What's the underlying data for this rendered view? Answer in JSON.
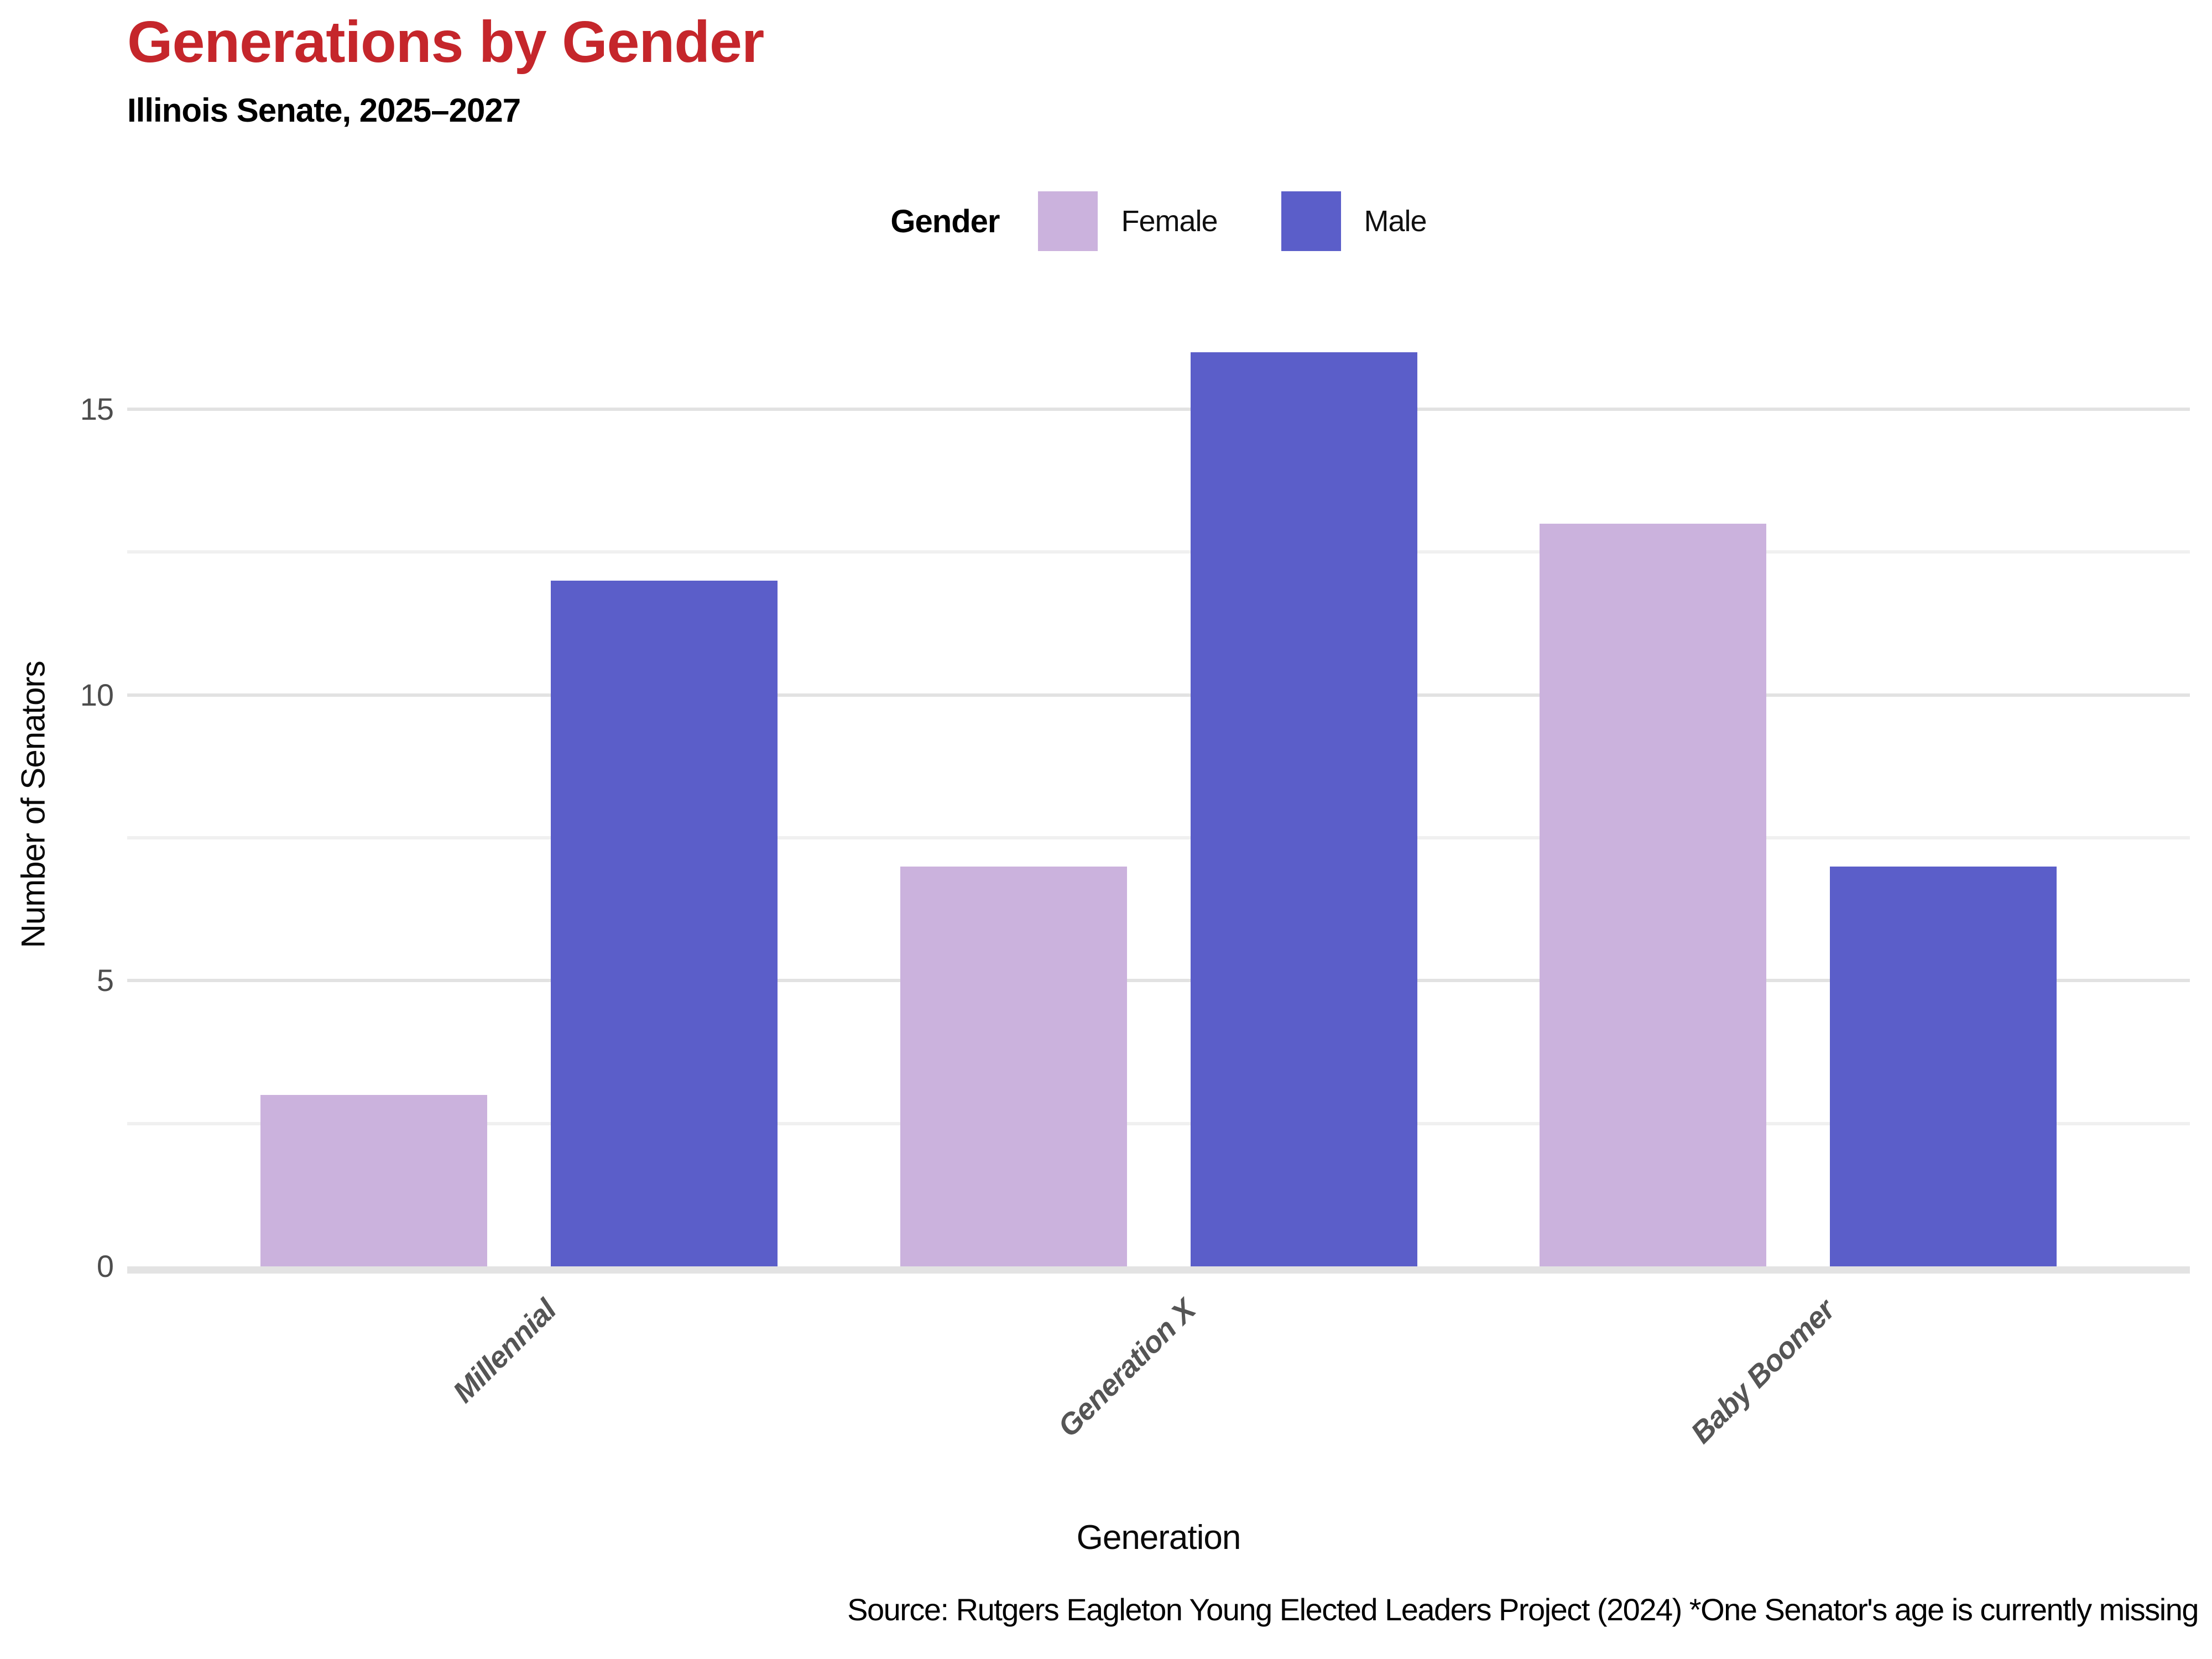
{
  "header": {
    "title": "Generations by Gender",
    "subtitle": "Illinois Senate, 2025–2027"
  },
  "legend": {
    "title": "Gender",
    "items": [
      {
        "label": "Female",
        "color": "#cbb2dd"
      },
      {
        "label": "Male",
        "color": "#5b5ec9"
      }
    ]
  },
  "axes": {
    "x_title": "Generation",
    "y_title": "Number of Senators",
    "y_ticks": [
      0,
      5,
      10,
      15
    ],
    "y_minor_ticks": [
      2.5,
      7.5,
      12.5
    ]
  },
  "chart_data": {
    "type": "bar",
    "categories": [
      "Millennial",
      "Generation X",
      "Baby Boomer"
    ],
    "series": [
      {
        "name": "Female",
        "color": "#cbb2dd",
        "values": [
          3,
          7,
          13
        ]
      },
      {
        "name": "Male",
        "color": "#5b5ec9",
        "values": [
          12,
          16,
          7
        ]
      }
    ],
    "title": "Generations by Gender",
    "subtitle": "Illinois Senate, 2025–2027",
    "xlabel": "Generation",
    "ylabel": "Number of Senators",
    "ylim": [
      0,
      16.16
    ],
    "grid": true,
    "legend_position": "top"
  },
  "source": "Source: Rutgers Eagleton Young Elected Leaders Project (2024) *One Senator's age is currently missing",
  "colors": {
    "title": "#c5262b",
    "axis_text": "#4d4d4d",
    "category_label": "#555555",
    "grid_major": "#e2e2e2",
    "grid_minor": "#f0f0f0",
    "baseline": "#e3e3e3"
  }
}
